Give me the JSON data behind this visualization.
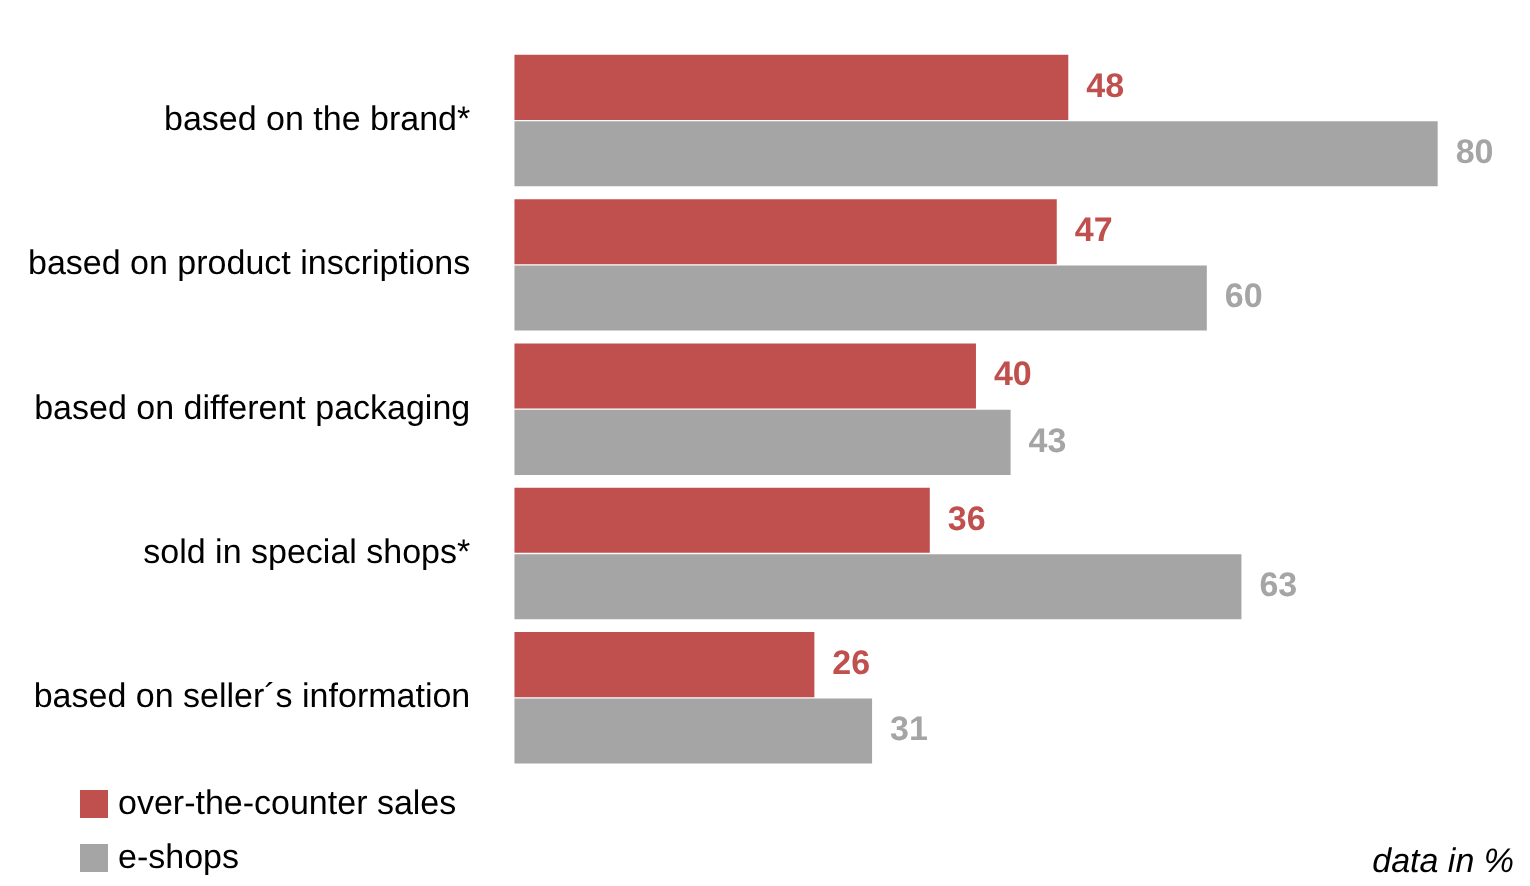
{
  "chart_data": {
    "type": "bar",
    "orientation": "horizontal",
    "categories": [
      "based on the brand*",
      "based on product inscriptions",
      "based on different packaging",
      "sold in special shops*",
      "based on seller´s information"
    ],
    "series": [
      {
        "name": "over-the-counter sales",
        "color": "#c0504d",
        "values": [
          48,
          47,
          40,
          36,
          26
        ]
      },
      {
        "name": "e-shops",
        "color": "#a5a5a5",
        "values": [
          80,
          60,
          43,
          63,
          31
        ]
      }
    ],
    "data_labels": true,
    "legend": "bottom left",
    "annotations": [
      "data in %"
    ]
  }
}
